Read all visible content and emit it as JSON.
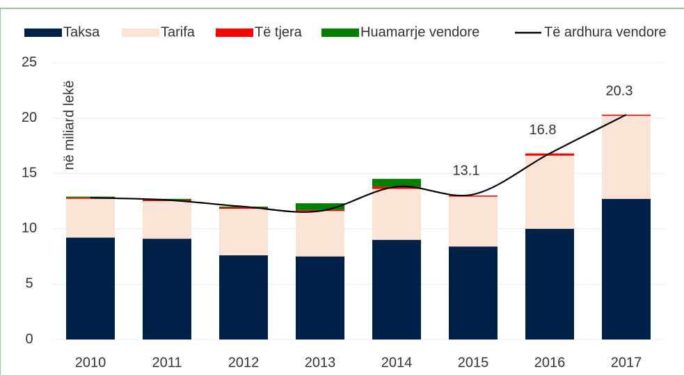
{
  "chart_data": {
    "type": "stacked_bar_line",
    "annotation": "në miliard lekë",
    "categories": [
      "2010",
      "2011",
      "2012",
      "2013",
      "2014",
      "2015",
      "2016",
      "2017"
    ],
    "series": [
      {
        "name": "Taksa",
        "color": "#002147",
        "values": [
          9.2,
          9.1,
          7.6,
          7.5,
          9.0,
          8.4,
          10.0,
          12.7
        ]
      },
      {
        "name": "Tarifa",
        "color": "#fbe3d6",
        "values": [
          3.5,
          3.4,
          4.2,
          4.1,
          4.6,
          4.5,
          6.6,
          7.5
        ]
      },
      {
        "name": "Të tjera",
        "color": "#ff0000",
        "values": [
          0.1,
          0.1,
          0.1,
          0.1,
          0.2,
          0.1,
          0.2,
          0.1
        ]
      },
      {
        "name": "Huamarrje vendore",
        "color": "#008000",
        "values": [
          0.1,
          0.1,
          0.1,
          0.6,
          0.7,
          0,
          0,
          0
        ]
      },
      {
        "name": "Të ardhura vendore",
        "color": "#000000",
        "kind": "line",
        "values": [
          12.8,
          12.6,
          12.0,
          11.6,
          13.8,
          13.1,
          16.8,
          20.3
        ],
        "value_labels": [
          null,
          null,
          null,
          null,
          null,
          "13.1",
          "16.8",
          "20.3"
        ]
      }
    ],
    "ylim": [
      0,
      25
    ],
    "yticks": [
      0,
      5,
      10,
      15,
      20,
      25
    ],
    "grid": true,
    "legend": "top"
  }
}
